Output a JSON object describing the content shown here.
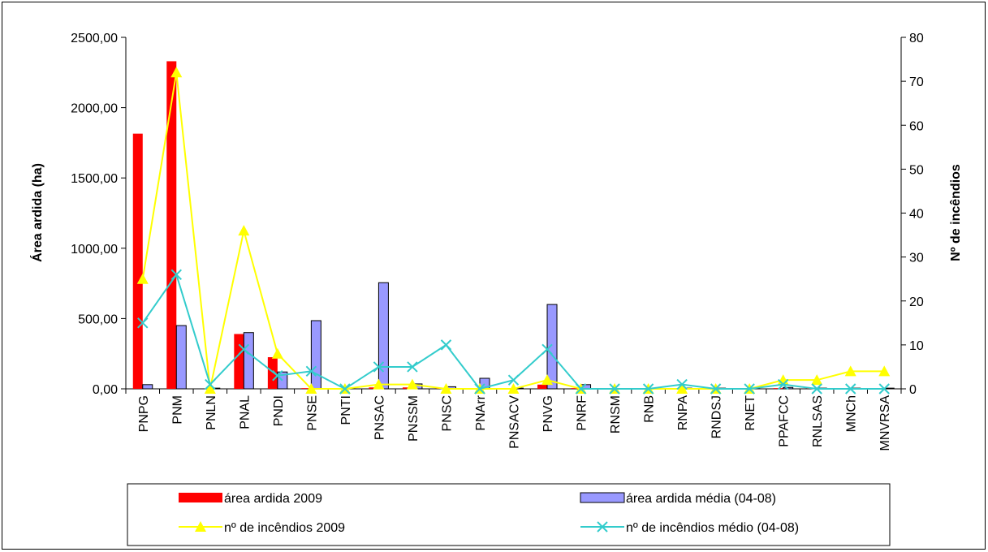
{
  "chart_data": {
    "type": "bar",
    "categories": [
      "PNPG",
      "PNM",
      "PNLN",
      "PNAL",
      "PNDI",
      "PNSE",
      "PNTI",
      "PNSAC",
      "PNSSM",
      "PNSC",
      "PNArr",
      "PNSACV",
      "PNVG",
      "PNRF",
      "RNSM",
      "RNB",
      "RNPA",
      "RNDSJ",
      "RNET",
      "PPAFCC",
      "RNLSAS",
      "MNCh",
      "MNVRSA"
    ],
    "series": [
      {
        "name": "área ardida 2009",
        "kind": "bar",
        "axis": "left",
        "color": "#ff0000",
        "values": [
          1815,
          2330,
          0,
          390,
          225,
          5,
          0,
          10,
          10,
          5,
          0,
          0,
          30,
          5,
          0,
          0,
          0,
          0,
          0,
          5,
          5,
          0,
          0
        ]
      },
      {
        "name": "área ardida média (04-08)",
        "kind": "bar",
        "axis": "left",
        "color": "#9999ff",
        "values": [
          30,
          450,
          5,
          400,
          120,
          485,
          5,
          755,
          35,
          15,
          75,
          5,
          600,
          30,
          0,
          5,
          5,
          5,
          5,
          10,
          5,
          5,
          5
        ]
      },
      {
        "name": "nº de incêndios 2009",
        "kind": "line",
        "axis": "right",
        "color": "#ffff00",
        "marker": "triangle",
        "values": [
          25,
          72,
          0,
          36,
          8,
          0,
          0,
          1,
          1,
          0,
          0,
          0,
          2,
          0,
          0,
          0,
          0,
          0,
          0,
          2,
          2,
          4,
          4
        ]
      },
      {
        "name": "nº de incêndios médio (04-08)",
        "kind": "line",
        "axis": "right",
        "color": "#33cccc",
        "marker": "x",
        "values": [
          15,
          26,
          1,
          9,
          3,
          4,
          0,
          5,
          5,
          10,
          0,
          2,
          9,
          0,
          0,
          0,
          1,
          0,
          0,
          1,
          0,
          0,
          0
        ]
      }
    ],
    "ylabel": "Área ardida (ha)",
    "y2label": "Nº de incêndios",
    "ylim": [
      0,
      2500
    ],
    "y2lim": [
      0,
      80
    ],
    "yticks": [
      "0,00",
      "500,00",
      "1000,00",
      "1500,00",
      "2000,00",
      "2500,00"
    ],
    "y2ticks": [
      "0",
      "10",
      "20",
      "30",
      "40",
      "50",
      "60",
      "70",
      "80"
    ],
    "legend_placement": "bottom",
    "grid": false
  }
}
